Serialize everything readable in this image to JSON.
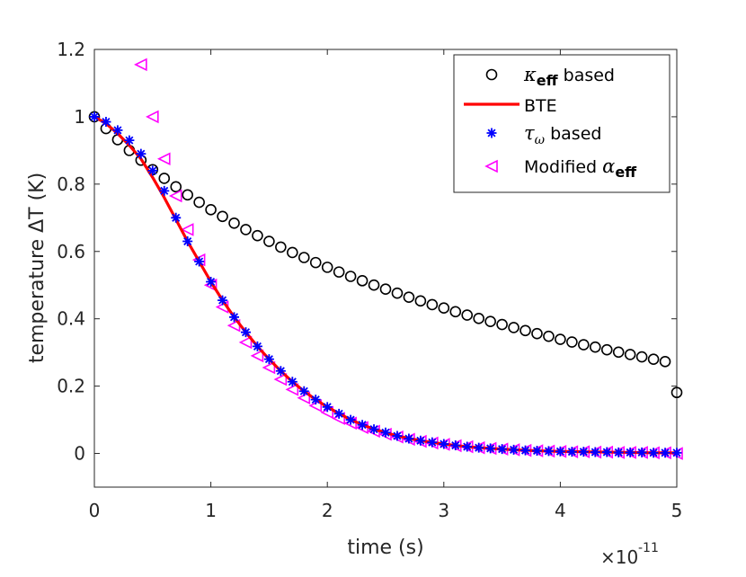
{
  "chart_data": {
    "type": "line",
    "title": "",
    "xlabel": "time (s)",
    "ylabel": "temperature ΔT (K)",
    "x_multiplier_label": "×10",
    "x_multiplier_exponent": "-11",
    "xlim": [
      0,
      5
    ],
    "ylim": [
      -0.1,
      1.2
    ],
    "xticks": [
      0,
      1,
      2,
      3,
      4,
      5
    ],
    "xtick_labels": [
      "0",
      "1",
      "2",
      "3",
      "4",
      "5"
    ],
    "yticks": [
      0,
      0.2,
      0.4,
      0.6,
      0.8,
      1,
      1.2
    ],
    "ytick_labels": [
      "0",
      "0.2",
      "0.4",
      "0.6",
      "0.8",
      "1",
      "1.2"
    ],
    "legend_position": "top-right",
    "series": [
      {
        "name": "κeff based",
        "legend_symbol": "κ",
        "legend_sub": "eff",
        "legend_text": " based",
        "marker": "circle",
        "color": "#000000",
        "x": [
          0,
          0.1,
          0.2,
          0.3,
          0.4,
          0.5,
          0.6,
          0.7,
          0.8,
          0.9,
          1.0,
          1.1,
          1.2,
          1.3,
          1.4,
          1.5,
          1.6,
          1.7,
          1.8,
          1.9,
          2.0,
          2.1,
          2.2,
          2.3,
          2.4,
          2.5,
          2.6,
          2.7,
          2.8,
          2.9,
          3.0,
          3.1,
          3.2,
          3.3,
          3.4,
          3.5,
          3.6,
          3.7,
          3.8,
          3.9,
          4.0,
          4.1,
          4.2,
          4.3,
          4.4,
          4.5,
          4.6,
          4.7,
          4.8,
          4.9,
          5.0
        ],
        "values": [
          1.0,
          0.965,
          0.932,
          0.9,
          0.871,
          0.843,
          0.817,
          0.792,
          0.768,
          0.746,
          0.724,
          0.704,
          0.684,
          0.665,
          0.647,
          0.63,
          0.613,
          0.597,
          0.582,
          0.567,
          0.553,
          0.539,
          0.526,
          0.513,
          0.5,
          0.488,
          0.476,
          0.464,
          0.453,
          0.442,
          0.432,
          0.421,
          0.411,
          0.401,
          0.392,
          0.383,
          0.374,
          0.365,
          0.356,
          0.348,
          0.339,
          0.331,
          0.323,
          0.316,
          0.308,
          0.301,
          0.294,
          0.287,
          0.28,
          0.273,
          0.181
        ]
      },
      {
        "name": "BTE",
        "legend_text": "BTE",
        "marker": "line",
        "color": "#ff0000",
        "x": [
          0,
          0.1,
          0.2,
          0.3,
          0.4,
          0.5,
          0.6,
          0.7,
          0.8,
          0.9,
          1.0,
          1.1,
          1.2,
          1.3,
          1.4,
          1.5,
          1.6,
          1.7,
          1.8,
          1.9,
          2.0,
          2.2,
          2.4,
          2.6,
          2.8,
          3.0,
          3.2,
          3.4,
          3.6,
          3.8,
          4.0,
          4.2,
          4.4,
          4.6,
          4.8,
          5.0
        ],
        "values": [
          1.0,
          0.98,
          0.95,
          0.915,
          0.875,
          0.82,
          0.76,
          0.695,
          0.63,
          0.57,
          0.51,
          0.455,
          0.405,
          0.36,
          0.318,
          0.28,
          0.245,
          0.213,
          0.185,
          0.16,
          0.138,
          0.1,
          0.072,
          0.052,
          0.038,
          0.028,
          0.02,
          0.015,
          0.011,
          0.008,
          0.006,
          0.005,
          0.004,
          0.003,
          0.002,
          0.002
        ]
      },
      {
        "name": "τω based",
        "legend_symbol": "τ",
        "legend_sub": "ω",
        "legend_text": " based",
        "marker": "asterisk",
        "color": "#0000ff",
        "x": [
          0,
          0.1,
          0.2,
          0.3,
          0.4,
          0.5,
          0.6,
          0.7,
          0.8,
          0.9,
          1.0,
          1.1,
          1.2,
          1.3,
          1.4,
          1.5,
          1.6,
          1.7,
          1.8,
          1.9,
          2.0,
          2.1,
          2.2,
          2.3,
          2.4,
          2.5,
          2.6,
          2.7,
          2.8,
          2.9,
          3.0,
          3.1,
          3.2,
          3.3,
          3.4,
          3.5,
          3.6,
          3.7,
          3.8,
          3.9,
          4.0,
          4.1,
          4.2,
          4.3,
          4.4,
          4.5,
          4.6,
          4.7,
          4.8,
          4.9,
          5.0
        ],
        "values": [
          1.0,
          0.985,
          0.96,
          0.93,
          0.89,
          0.84,
          0.78,
          0.7,
          0.63,
          0.57,
          0.51,
          0.455,
          0.405,
          0.36,
          0.318,
          0.28,
          0.245,
          0.213,
          0.185,
          0.16,
          0.138,
          0.118,
          0.1,
          0.085,
          0.072,
          0.062,
          0.052,
          0.044,
          0.038,
          0.033,
          0.028,
          0.024,
          0.02,
          0.017,
          0.015,
          0.013,
          0.011,
          0.009,
          0.008,
          0.007,
          0.006,
          0.005,
          0.005,
          0.004,
          0.004,
          0.003,
          0.003,
          0.003,
          0.002,
          0.002,
          0.002
        ]
      },
      {
        "name": "Modified αeff",
        "legend_text": "Modified ",
        "legend_symbol": "α",
        "legend_sub": "eff",
        "marker": "triangle-left",
        "color": "#ff00ff",
        "x": [
          0.4,
          0.5,
          0.6,
          0.7,
          0.8,
          0.9,
          1.0,
          1.1,
          1.2,
          1.3,
          1.4,
          1.5,
          1.6,
          1.7,
          1.8,
          1.9,
          2.0,
          2.1,
          2.2,
          2.3,
          2.4,
          2.5,
          2.6,
          2.7,
          2.8,
          2.9,
          3.0,
          3.1,
          3.2,
          3.3,
          3.4,
          3.5,
          3.6,
          3.7,
          3.8,
          3.9,
          4.0,
          4.1,
          4.2,
          4.3,
          4.4,
          4.5,
          4.6,
          4.7,
          4.8,
          4.9,
          5.0
        ],
        "values": [
          1.155,
          1.0,
          0.875,
          0.765,
          0.665,
          0.575,
          0.5,
          0.435,
          0.38,
          0.33,
          0.29,
          0.255,
          0.22,
          0.19,
          0.165,
          0.142,
          0.122,
          0.104,
          0.09,
          0.077,
          0.066,
          0.057,
          0.049,
          0.042,
          0.036,
          0.031,
          0.027,
          0.023,
          0.02,
          0.017,
          0.015,
          0.013,
          0.011,
          0.009,
          0.008,
          0.007,
          0.006,
          0.005,
          0.005,
          0.004,
          0.004,
          0.003,
          0.003,
          0.003,
          0.002,
          0.002,
          0.0
        ]
      }
    ]
  }
}
